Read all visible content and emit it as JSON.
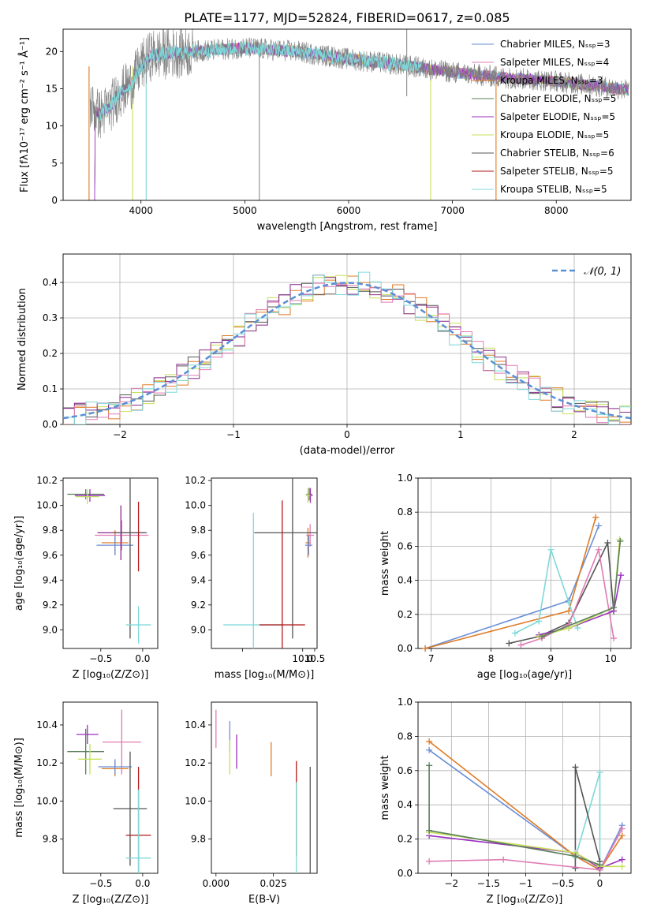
{
  "figure_title": "PLATE=1177, MJD=52824, FIBERID=0617, z=0.085",
  "colors": {
    "chabrier_miles": "#6a8fd6",
    "salpeter_miles": "#e07b25",
    "kroupa_miles": "#8a2a8a",
    "chabrier_elodie": "#5b7f5b",
    "salpeter_elodie": "#9a2fbf",
    "kroupa_elodie": "#c6e05a",
    "chabrier_stelib": "#555555",
    "salpeter_stelib": "#b01a1a",
    "kroupa_stelib": "#7fd8d8",
    "pink": "#e07bb5",
    "gaussian": "#5b8fd6",
    "grid": "#b0b0b0"
  },
  "chart_data": [
    {
      "id": "spectrum",
      "type": "line",
      "title": "",
      "xlabel": "wavelength [Angstrom, rest frame]",
      "ylabel": "Flux [fλ10⁻¹⁷ erg cm⁻² s⁻¹ Å⁻¹]",
      "xlim": [
        3250,
        8720
      ],
      "ylim": [
        0,
        23
      ],
      "xticks": [
        4000,
        5000,
        6000,
        7000,
        8000
      ],
      "yticks": [
        0,
        5,
        10,
        15,
        20
      ],
      "grid": false,
      "legend_position": "top-right",
      "continuum": {
        "x": [
          3500,
          3600,
          3700,
          3800,
          3900,
          4000,
          4100,
          4300,
          4500,
          4800,
          5000,
          5500,
          6000,
          6500,
          7000,
          7500,
          8000,
          8500,
          8700
        ],
        "y": [
          13,
          11.5,
          12.5,
          14.5,
          15.5,
          18,
          19.5,
          19.8,
          20,
          20.3,
          20.5,
          20,
          19,
          18.2,
          17.2,
          16.5,
          16,
          15.2,
          14.8
        ]
      },
      "series": [
        {
          "name": "Chabrier MILES, N_SSP=3",
          "color_key": "chabrier_miles"
        },
        {
          "name": "Salpeter MILES, N_SSP=4",
          "color_key": "pink"
        },
        {
          "name": "Kroupa MILES, N_SSP=3",
          "color_key": "salpeter_miles"
        },
        {
          "name": "Chabrier ELODIE, N_SSP=5",
          "color_key": "chabrier_elodie"
        },
        {
          "name": "Salpeter ELODIE, N_SSP=5",
          "color_key": "salpeter_elodie"
        },
        {
          "name": "Kroupa ELODIE, N_SSP=5",
          "color_key": "kroupa_elodie"
        },
        {
          "name": "Chabrier STELIB, N_SSP=6",
          "color_key": "chabrier_stelib"
        },
        {
          "name": "Salpeter STELIB, N_SSP=5",
          "color_key": "salpeter_stelib"
        },
        {
          "name": "Kroupa STELIB, N_SSP=5",
          "color_key": "kroupa_stelib"
        }
      ]
    },
    {
      "id": "residuals",
      "type": "line",
      "xlabel": "(data-model)/error",
      "ylabel": "Normed distribution",
      "xlim": [
        -2.5,
        2.5
      ],
      "ylim": [
        0,
        0.48
      ],
      "xticks": [
        -2,
        -1,
        0,
        1,
        2
      ],
      "yticks": [
        0.0,
        0.1,
        0.2,
        0.3,
        0.4
      ],
      "grid": true,
      "legend_position": "top-right",
      "gaussian_label": "𝒩(0, 1)",
      "bin_width": 0.1,
      "series_color_keys": [
        "salpeter_miles",
        "kroupa_elodie",
        "chabrier_stelib",
        "kroupa_miles",
        "pink",
        "kroupa_stelib"
      ]
    },
    {
      "id": "age_vs_Z",
      "type": "scatter",
      "xlabel": "Z [log₁₀(Z/Z⊙)]",
      "ylabel": "age  [log₁₀(age/yr)]",
      "xlim": [
        -0.95,
        0.18
      ],
      "ylim": [
        8.85,
        10.22
      ],
      "xticks": [
        -0.5,
        0.0
      ],
      "yticks": [
        9.0,
        9.2,
        9.4,
        9.6,
        9.8,
        10.0,
        10.2
      ],
      "grid": false,
      "points": [
        {
          "x": -0.68,
          "y": 10.09,
          "ex": 0.22,
          "ey": 0.04,
          "c": "chabrier_elodie"
        },
        {
          "x": -0.63,
          "y": 10.08,
          "ex": 0.18,
          "ey": 0.05,
          "c": "salpeter_elodie"
        },
        {
          "x": -0.66,
          "y": 10.07,
          "ex": 0.14,
          "ey": 0.06,
          "c": "kroupa_elodie"
        },
        {
          "x": -0.33,
          "y": 9.7,
          "ex": 0.16,
          "ey": 0.1,
          "c": "salpeter_miles"
        },
        {
          "x": -0.33,
          "y": 9.68,
          "ex": 0.22,
          "ey": 0.08,
          "c": "chabrier_miles"
        },
        {
          "x": -0.25,
          "y": 9.76,
          "ex": 0.32,
          "ey": 0.12,
          "c": "pink"
        },
        {
          "x": -0.26,
          "y": 9.78,
          "ex": 0.28,
          "ey": 0.22,
          "c": "kroupa_miles"
        },
        {
          "x": -0.15,
          "y": 9.78,
          "ex": 0.2,
          "ey": 0.85,
          "c": "chabrier_stelib"
        },
        {
          "x": -0.05,
          "y": 9.04,
          "ex": 0.15,
          "ey": 0.15,
          "c": "kroupa_stelib"
        },
        {
          "x": -0.05,
          "y": 9.75,
          "ex": 0.0,
          "ey": 0.28,
          "c": "salpeter_stelib"
        }
      ]
    },
    {
      "id": "age_vs_mass",
      "type": "scatter",
      "xlabel": "mass [log₁₀(M/M⊙)]",
      "ylabel": "",
      "xlim": [
        6.2,
        10.6
      ],
      "ylim": [
        8.85,
        10.22
      ],
      "xticks": [
        7.5,
        10.0,
        10.5
      ],
      "xticklabels": [
        "",
        "10.0",
        "10.5"
      ],
      "yticks": [
        9.0,
        9.2,
        9.4,
        9.6,
        9.8,
        10.0,
        10.2
      ],
      "grid": false,
      "points": [
        {
          "x": 10.27,
          "y": 10.09,
          "ex": 0.12,
          "ey": 0.05,
          "c": "chabrier_elodie"
        },
        {
          "x": 10.32,
          "y": 10.08,
          "ex": 0.1,
          "ey": 0.06,
          "c": "salpeter_elodie"
        },
        {
          "x": 10.22,
          "y": 10.08,
          "ex": 0.1,
          "ey": 0.06,
          "c": "kroupa_elodie"
        },
        {
          "x": 10.31,
          "y": 9.76,
          "ex": 0.16,
          "ey": 0.09,
          "c": "pink"
        },
        {
          "x": 10.22,
          "y": 9.7,
          "ex": 0.1,
          "ey": 0.12,
          "c": "salpeter_miles"
        },
        {
          "x": 10.25,
          "y": 9.68,
          "ex": 0.15,
          "ey": 0.08,
          "c": "chabrier_miles"
        },
        {
          "x": 9.58,
          "y": 9.78,
          "ex": 1.6,
          "ey": 0.85,
          "c": "chabrier_stelib"
        },
        {
          "x": 7.95,
          "y": 9.04,
          "ex": 1.25,
          "ey": 0.9,
          "c": "kroupa_stelib"
        },
        {
          "x": 9.15,
          "y": 9.04,
          "ex": 0.95,
          "ey": 1.0,
          "c": "salpeter_stelib"
        }
      ]
    },
    {
      "id": "weight_vs_age",
      "type": "line",
      "xlabel": "age  [log₁₀(age/yr)]",
      "ylabel": "mass weight",
      "xlim": [
        6.78,
        10.34
      ],
      "ylim": [
        0,
        1.0
      ],
      "xticks": [
        7,
        8,
        9,
        10
      ],
      "yticks": [
        0.0,
        0.2,
        0.4,
        0.6,
        0.8,
        1.0
      ],
      "grid": true,
      "series": [
        {
          "c": "chabrier_miles",
          "x": [
            6.9,
            9.3,
            9.8
          ],
          "y": [
            0.0,
            0.28,
            0.72
          ]
        },
        {
          "c": "salpeter_miles",
          "x": [
            6.9,
            9.3,
            9.75
          ],
          "y": [
            0.0,
            0.22,
            0.77
          ]
        },
        {
          "c": "kroupa_stelib",
          "x": [
            8.4,
            8.8,
            9.0,
            9.3,
            9.45
          ],
          "y": [
            0.09,
            0.16,
            0.58,
            0.27,
            0.12
          ]
        },
        {
          "c": "chabrier_stelib",
          "x": [
            8.3,
            8.8,
            9.3,
            9.95,
            10.05
          ],
          "y": [
            0.03,
            0.07,
            0.15,
            0.62,
            0.22
          ]
        },
        {
          "c": "pink",
          "x": [
            8.5,
            8.85,
            9.3,
            9.8,
            10.05
          ],
          "y": [
            0.02,
            0.06,
            0.14,
            0.58,
            0.06
          ]
        },
        {
          "c": "salpeter_elodie",
          "x": [
            8.8,
            9.3,
            10.05,
            10.17
          ],
          "y": [
            0.08,
            0.12,
            0.22,
            0.43
          ]
        },
        {
          "c": "kroupa_elodie",
          "x": [
            8.8,
            9.3,
            10.05,
            10.15
          ],
          "y": [
            0.07,
            0.12,
            0.24,
            0.64
          ]
        },
        {
          "c": "chabrier_elodie",
          "x": [
            8.85,
            10.05,
            10.16
          ],
          "y": [
            0.07,
            0.24,
            0.63
          ]
        }
      ]
    },
    {
      "id": "mass_vs_Z",
      "type": "scatter",
      "xlabel": "Z [log₁₀(Z/Z⊙)]",
      "ylabel": "mass [log₁₀(M/M⊙)]",
      "xlim": [
        -0.95,
        0.18
      ],
      "ylim": [
        9.62,
        10.52
      ],
      "xticks": [
        -0.5,
        0.0
      ],
      "yticks": [
        9.8,
        10.0,
        10.2,
        10.4
      ],
      "grid": false,
      "points": [
        {
          "x": -0.66,
          "y": 10.35,
          "ex": 0.13,
          "ey": 0.05,
          "c": "salpeter_elodie"
        },
        {
          "x": -0.68,
          "y": 10.26,
          "ex": 0.22,
          "ey": 0.12,
          "c": "chabrier_elodie"
        },
        {
          "x": -0.63,
          "y": 10.22,
          "ex": 0.14,
          "ey": 0.08,
          "c": "kroupa_elodie"
        },
        {
          "x": -0.25,
          "y": 10.31,
          "ex": 0.23,
          "ey": 0.17,
          "c": "pink"
        },
        {
          "x": -0.33,
          "y": 10.17,
          "ex": 0.16,
          "ey": 0.04,
          "c": "salpeter_miles"
        },
        {
          "x": -0.33,
          "y": 10.18,
          "ex": 0.2,
          "ey": 0.04,
          "c": "chabrier_miles"
        },
        {
          "x": -0.15,
          "y": 9.96,
          "ex": 0.2,
          "ey": 0.3,
          "c": "chabrier_stelib"
        },
        {
          "x": -0.05,
          "y": 9.82,
          "ex": 0.15,
          "ey": 0.36,
          "c": "salpeter_stelib"
        },
        {
          "x": -0.05,
          "y": 9.7,
          "ex": 0.15,
          "ey": 0.36,
          "c": "kroupa_stelib"
        }
      ]
    },
    {
      "id": "mass_vs_EBV",
      "type": "scatter",
      "xlabel": "E(B-V)",
      "ylabel": "",
      "xlim": [
        -0.002,
        0.044
      ],
      "ylim": [
        9.62,
        10.52
      ],
      "xticks": [
        0.0,
        0.025
      ],
      "xticklabels": [
        "0.000",
        "0.025"
      ],
      "yticks": [
        9.8,
        10.0,
        10.2,
        10.4
      ],
      "grid": false,
      "points": [
        {
          "x": 0.0,
          "y": 10.38,
          "ey": 0.1,
          "c": "pink"
        },
        {
          "x": 0.006,
          "y": 10.34,
          "ey": 0.08,
          "c": "chabrier_miles"
        },
        {
          "x": 0.006,
          "y": 10.23,
          "ey": 0.09,
          "c": "kroupa_elodie"
        },
        {
          "x": 0.009,
          "y": 10.26,
          "ey": 0.09,
          "c": "salpeter_elodie"
        },
        {
          "x": 0.024,
          "y": 10.22,
          "ey": 0.09,
          "c": "salpeter_miles"
        },
        {
          "x": 0.035,
          "y": 9.96,
          "ey": 0.25,
          "c": "salpeter_stelib"
        },
        {
          "x": 0.035,
          "y": 9.8,
          "ey": 0.3,
          "c": "kroupa_stelib"
        },
        {
          "x": 0.041,
          "y": 9.9,
          "ey": 0.28,
          "c": "chabrier_stelib"
        }
      ]
    },
    {
      "id": "weight_vs_Z",
      "type": "line",
      "xlabel": "Z [log₁₀(Z/Z⊙)]",
      "ylabel": "mass weight",
      "xlim": [
        -2.45,
        0.42
      ],
      "ylim": [
        0,
        1.0
      ],
      "xticks": [
        -2.0,
        -1.5,
        -1.0,
        -0.5,
        0.0
      ],
      "yticks": [
        0.0,
        0.2,
        0.4,
        0.6,
        0.8,
        1.0
      ],
      "grid": true,
      "series": [
        {
          "c": "chabrier_miles",
          "x": [
            -2.3,
            -0.33,
            0.0,
            0.3
          ],
          "y": [
            0.72,
            0.1,
            0.02,
            0.28
          ]
        },
        {
          "c": "salpeter_miles",
          "x": [
            -2.3,
            -0.33,
            0.0,
            0.3
          ],
          "y": [
            0.77,
            0.1,
            0.02,
            0.22
          ]
        },
        {
          "c": "kroupa_stelib",
          "x": [
            -0.33,
            0.0,
            0.0
          ],
          "y": [
            0.09,
            0.59,
            0.03
          ]
        },
        {
          "c": "chabrier_stelib",
          "x": [
            -0.33,
            -0.33,
            0.0
          ],
          "y": [
            0.03,
            0.62,
            0.07
          ]
        },
        {
          "c": "pink",
          "x": [
            -2.3,
            -1.3,
            0.0,
            0.3
          ],
          "y": [
            0.07,
            0.08,
            0.02,
            0.26
          ]
        },
        {
          "c": "salpeter_elodie",
          "x": [
            -2.3,
            -0.33,
            0.0,
            0.3
          ],
          "y": [
            0.22,
            0.12,
            0.03,
            0.08
          ]
        },
        {
          "c": "kroupa_elodie",
          "x": [
            -2.3,
            -0.33,
            0.0,
            0.3
          ],
          "y": [
            0.24,
            0.12,
            0.04,
            0.04
          ]
        },
        {
          "c": "chabrier_elodie",
          "x": [
            -2.3,
            -2.3,
            -0.33,
            0.0
          ],
          "y": [
            0.63,
            0.25,
            0.1,
            0.05
          ]
        }
      ]
    }
  ]
}
